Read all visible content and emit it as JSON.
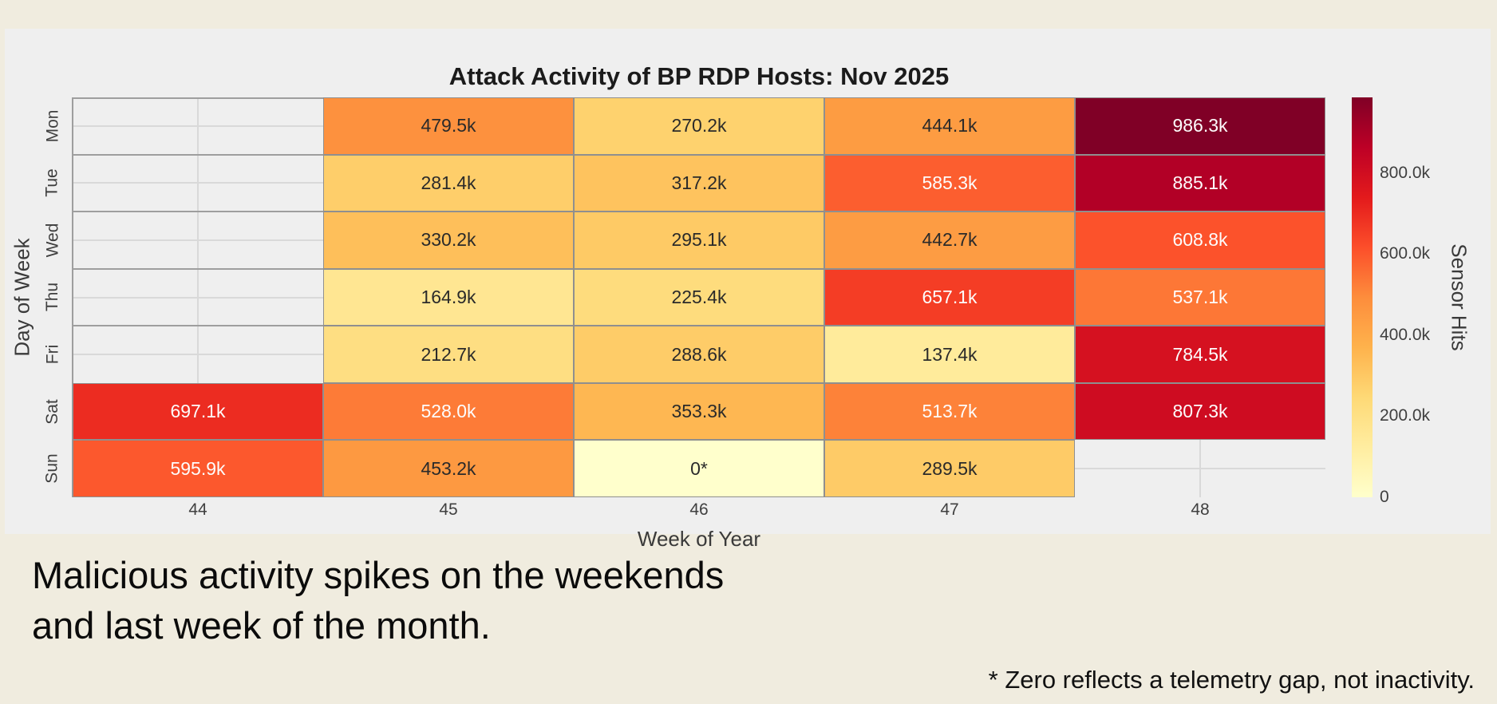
{
  "title": "Attack Activity of BP RDP Hosts: Nov 2025",
  "chart_data": {
    "type": "heatmap",
    "title": "Attack Activity of BP RDP Hosts: Nov 2025",
    "xlabel": "Week of Year",
    "ylabel": "Day of Week",
    "colorbar_label": "Sensor Hits",
    "x_categories": [
      "44",
      "45",
      "46",
      "47",
      "48"
    ],
    "y_categories": [
      "Mon",
      "Tue",
      "Wed",
      "Thu",
      "Fri",
      "Sat",
      "Sun"
    ],
    "values": [
      [
        null,
        479500,
        270200,
        444100,
        986300
      ],
      [
        null,
        281400,
        317200,
        585300,
        885100
      ],
      [
        null,
        330200,
        295100,
        442700,
        608800
      ],
      [
        null,
        164900,
        225400,
        657100,
        537100
      ],
      [
        null,
        212700,
        288600,
        137400,
        784500
      ],
      [
        697100,
        528000,
        353300,
        513700,
        807300
      ],
      [
        595900,
        453200,
        0,
        289500,
        null
      ]
    ],
    "labels": [
      [
        "",
        "479.5k",
        "270.2k",
        "444.1k",
        "986.3k"
      ],
      [
        "",
        "281.4k",
        "317.2k",
        "585.3k",
        "885.1k"
      ],
      [
        "",
        "330.2k",
        "295.1k",
        "442.7k",
        "608.8k"
      ],
      [
        "",
        "164.9k",
        "225.4k",
        "657.1k",
        "537.1k"
      ],
      [
        "",
        "212.7k",
        "288.6k",
        "137.4k",
        "784.5k"
      ],
      [
        "697.1k",
        "528.0k",
        "353.3k",
        "513.7k",
        "807.3k"
      ],
      [
        "595.9k",
        "453.2k",
        "0*",
        "289.5k",
        ""
      ]
    ],
    "vmin": 0,
    "vmax": 986300,
    "colormap": {
      "name": "YlOrRd",
      "stops": [
        "#ffffcc",
        "#ffeda0",
        "#fed976",
        "#feb24c",
        "#fd8d3c",
        "#fc4e2a",
        "#e31a1c",
        "#bd0026",
        "#800026"
      ]
    },
    "colorbar_ticks": [
      {
        "value": 800000,
        "label": "800.0k"
      },
      {
        "value": 600000,
        "label": "600.0k"
      },
      {
        "value": 400000,
        "label": "400.0k"
      },
      {
        "value": 200000,
        "label": "200.0k"
      },
      {
        "value": 0,
        "label": "0"
      }
    ],
    "grid": true,
    "legend_position": "right-colorbar"
  },
  "caption": {
    "line1": "Malicious activity spikes on the weekends",
    "line2": "and last week of the month."
  },
  "footnote": "* Zero reflects a telemetry gap, not inactivity.",
  "colors": {
    "page_bg": "#f0ecdf",
    "figure_bg": "#efefef",
    "grid_line": "#d9d9d9",
    "mesh_line": "#9e9e9e",
    "cell_border": "#8f8f8f",
    "tick_text": "#3f3f3f",
    "title_text": "#1b1b1b",
    "annot_dark": "#2a2a2a",
    "annot_light": "#fdfdfd"
  }
}
